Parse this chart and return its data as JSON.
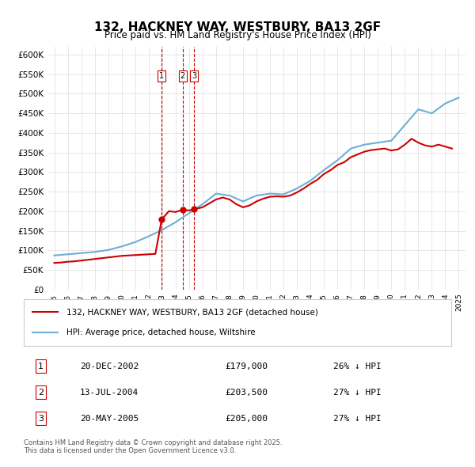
{
  "title": "132, HACKNEY WAY, WESTBURY, BA13 2GF",
  "subtitle": "Price paid vs. HM Land Registry's House Price Index (HPI)",
  "hpi_label": "HPI: Average price, detached house, Wiltshire",
  "property_label": "132, HACKNEY WAY, WESTBURY, BA13 2GF (detached house)",
  "footer": "Contains HM Land Registry data © Crown copyright and database right 2025.\nThis data is licensed under the Open Government Licence v3.0.",
  "transactions": [
    {
      "num": 1,
      "date": "20-DEC-2002",
      "price": "£179,000",
      "hpi_diff": "26% ↓ HPI",
      "year": 2002.97
    },
    {
      "num": 2,
      "date": "13-JUL-2004",
      "price": "£203,500",
      "hpi_diff": "27% ↓ HPI",
      "year": 2004.53
    },
    {
      "num": 3,
      "date": "20-MAY-2005",
      "price": "£205,000",
      "hpi_diff": "27% ↓ HPI",
      "year": 2005.38
    }
  ],
  "hpi_color": "#6dafd6",
  "price_color": "#cc0000",
  "vline_color": "#cc0000",
  "bg_color": "#ffffff",
  "grid_color": "#dddddd",
  "ylim": [
    0,
    620000
  ],
  "yticks": [
    0,
    50000,
    100000,
    150000,
    200000,
    250000,
    300000,
    350000,
    400000,
    450000,
    500000,
    550000,
    600000
  ],
  "xlim_start": 1994.5,
  "xlim_end": 2025.5,
  "hpi_years": [
    1995,
    1996,
    1997,
    1998,
    1999,
    2000,
    2001,
    2002,
    2003,
    2004,
    2005,
    2006,
    2007,
    2008,
    2009,
    2010,
    2011,
    2012,
    2013,
    2014,
    2015,
    2016,
    2017,
    2018,
    2019,
    2020,
    2021,
    2022,
    2023,
    2024,
    2025
  ],
  "hpi_values": [
    87000,
    90000,
    93000,
    96000,
    101000,
    110000,
    121000,
    136000,
    152000,
    172000,
    195000,
    218000,
    245000,
    240000,
    225000,
    240000,
    245000,
    243000,
    258000,
    278000,
    305000,
    330000,
    360000,
    370000,
    375000,
    380000,
    420000,
    460000,
    450000,
    475000,
    490000
  ],
  "price_years": [
    1995.0,
    1995.5,
    1996.0,
    1996.5,
    1997.0,
    1997.5,
    1998.0,
    1998.5,
    1999.0,
    1999.5,
    2000.0,
    2000.5,
    2001.0,
    2001.5,
    2002.0,
    2002.5,
    2002.97,
    2003.5,
    2004.0,
    2004.53,
    2005.0,
    2005.38,
    2006.0,
    2006.5,
    2007.0,
    2007.5,
    2008.0,
    2008.5,
    2009.0,
    2009.5,
    2010.0,
    2010.5,
    2011.0,
    2011.5,
    2012.0,
    2012.5,
    2013.0,
    2013.5,
    2014.0,
    2014.5,
    2015.0,
    2015.5,
    2016.0,
    2016.5,
    2017.0,
    2017.5,
    2018.0,
    2018.5,
    2019.0,
    2019.5,
    2020.0,
    2020.5,
    2021.0,
    2021.5,
    2022.0,
    2022.5,
    2023.0,
    2023.5,
    2024.0,
    2024.5
  ],
  "price_values": [
    68000,
    69000,
    71000,
    72000,
    74000,
    76000,
    78000,
    80000,
    82000,
    84000,
    86000,
    87000,
    88000,
    89000,
    90000,
    91000,
    179000,
    200000,
    198000,
    203500,
    202000,
    205000,
    210000,
    220000,
    230000,
    235000,
    230000,
    218000,
    210000,
    215000,
    225000,
    232000,
    237000,
    238000,
    237000,
    240000,
    248000,
    258000,
    270000,
    280000,
    295000,
    305000,
    318000,
    325000,
    338000,
    345000,
    352000,
    356000,
    358000,
    360000,
    355000,
    358000,
    370000,
    385000,
    375000,
    368000,
    365000,
    370000,
    365000,
    360000
  ]
}
